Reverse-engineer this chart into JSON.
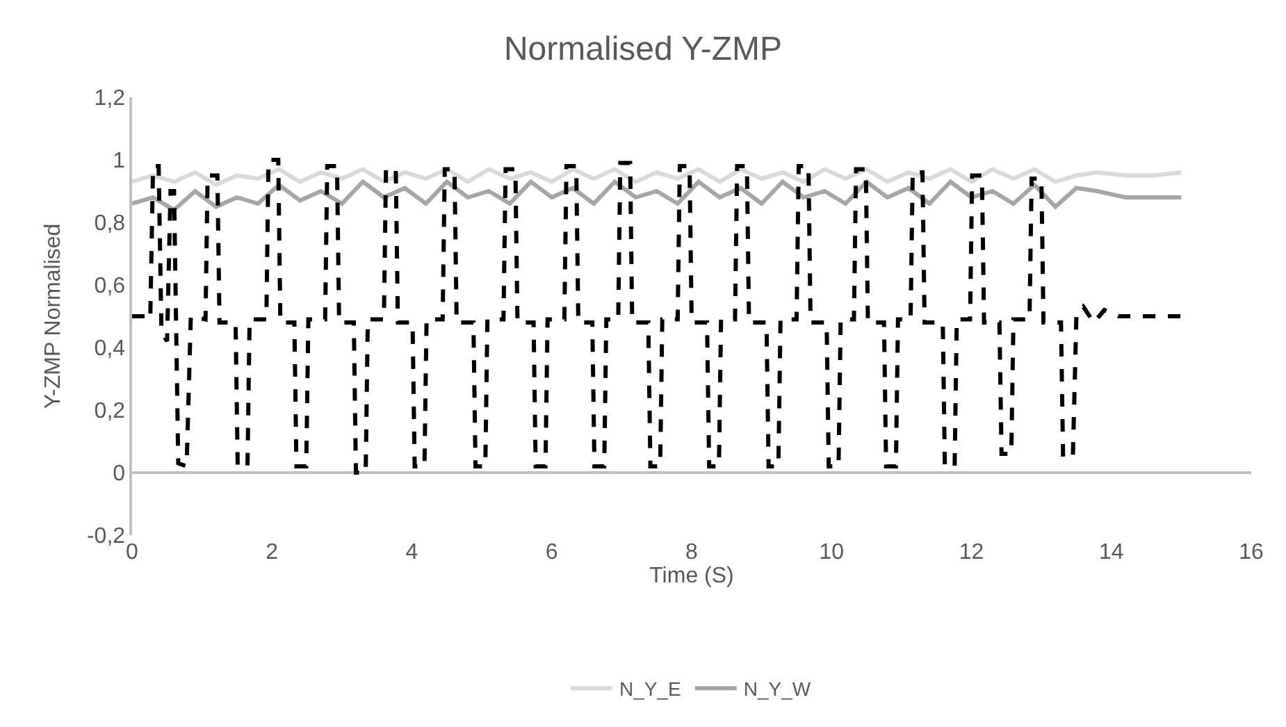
{
  "chart_data": {
    "type": "line",
    "title": "Normalised Y-ZMP",
    "xlabel": "Time (S)",
    "ylabel": "Y-ZMP Normalised",
    "xlim": [
      0,
      16
    ],
    "xticks": [
      0,
      2,
      4,
      6,
      8,
      10,
      12,
      14,
      16
    ],
    "ylim": [
      -0.2,
      1.2
    ],
    "yticks": [
      {
        "value": -0.2,
        "label": "-0,2"
      },
      0,
      {
        "value": 0.2,
        "label": "0,2"
      },
      {
        "value": 0.4,
        "label": "0,4"
      },
      {
        "value": 0.6,
        "label": "0,6"
      },
      {
        "value": 0.8,
        "label": "0,8"
      },
      1,
      {
        "value": 1.2,
        "label": "1,2"
      }
    ],
    "legend": "bottom",
    "marker": "none",
    "series": [
      {
        "name": "N_Y_E",
        "color": "#d9d9d9",
        "line_style": "solid",
        "x": [
          0,
          0.3,
          0.6,
          0.9,
          1.2,
          1.5,
          1.8,
          2.1,
          2.4,
          2.7,
          3.0,
          3.3,
          3.6,
          3.9,
          4.2,
          4.5,
          4.8,
          5.1,
          5.4,
          5.7,
          6.0,
          6.3,
          6.6,
          6.9,
          7.2,
          7.5,
          7.8,
          8.1,
          8.4,
          8.7,
          9.0,
          9.3,
          9.6,
          9.9,
          10.2,
          10.5,
          10.8,
          11.1,
          11.4,
          11.7,
          12.0,
          12.3,
          12.6,
          12.9,
          13.2,
          13.5,
          13.8,
          14.2,
          14.6,
          15.0
        ],
        "values": [
          0.93,
          0.95,
          0.93,
          0.96,
          0.92,
          0.95,
          0.94,
          0.97,
          0.93,
          0.96,
          0.94,
          0.97,
          0.93,
          0.96,
          0.94,
          0.97,
          0.93,
          0.97,
          0.94,
          0.96,
          0.93,
          0.97,
          0.94,
          0.97,
          0.93,
          0.96,
          0.94,
          0.97,
          0.93,
          0.97,
          0.94,
          0.96,
          0.93,
          0.97,
          0.94,
          0.97,
          0.93,
          0.96,
          0.94,
          0.97,
          0.93,
          0.97,
          0.94,
          0.97,
          0.93,
          0.95,
          0.96,
          0.95,
          0.95,
          0.96
        ]
      },
      {
        "name": "N_Y_W",
        "color": "#a6a6a6",
        "line_style": "solid",
        "x": [
          0,
          0.3,
          0.6,
          0.9,
          1.2,
          1.5,
          1.8,
          2.1,
          2.4,
          2.7,
          3.0,
          3.3,
          3.6,
          3.9,
          4.2,
          4.5,
          4.8,
          5.1,
          5.4,
          5.7,
          6.0,
          6.3,
          6.6,
          6.9,
          7.2,
          7.5,
          7.8,
          8.1,
          8.4,
          8.7,
          9.0,
          9.3,
          9.6,
          9.9,
          10.2,
          10.5,
          10.8,
          11.1,
          11.4,
          11.7,
          12.0,
          12.3,
          12.6,
          12.9,
          13.2,
          13.5,
          13.8,
          14.2,
          14.6,
          15.0
        ],
        "values": [
          0.86,
          0.88,
          0.84,
          0.9,
          0.85,
          0.88,
          0.86,
          0.92,
          0.87,
          0.9,
          0.86,
          0.93,
          0.88,
          0.91,
          0.86,
          0.93,
          0.88,
          0.9,
          0.86,
          0.93,
          0.88,
          0.91,
          0.86,
          0.93,
          0.88,
          0.9,
          0.86,
          0.93,
          0.88,
          0.91,
          0.86,
          0.93,
          0.88,
          0.9,
          0.86,
          0.93,
          0.88,
          0.91,
          0.86,
          0.93,
          0.88,
          0.9,
          0.86,
          0.92,
          0.85,
          0.91,
          0.9,
          0.88,
          0.88,
          0.88
        ]
      },
      {
        "color": "#000000",
        "line_style": "dashed",
        "x": [
          0,
          0.2,
          0.26,
          0.3,
          0.38,
          0.42,
          0.5,
          0.55,
          0.6,
          0.66,
          0.78,
          0.84,
          1.05,
          1.08,
          1.22,
          1.25,
          1.48,
          1.51,
          1.65,
          1.68,
          1.92,
          1.95,
          2.09,
          2.12,
          2.32,
          2.35,
          2.49,
          2.52,
          2.76,
          2.79,
          2.93,
          2.96,
          3.17,
          3.2,
          3.34,
          3.37,
          3.6,
          3.63,
          3.77,
          3.8,
          4.01,
          4.04,
          4.18,
          4.21,
          4.44,
          4.47,
          4.61,
          4.64,
          4.88,
          4.91,
          5.05,
          5.08,
          5.31,
          5.34,
          5.48,
          5.51,
          5.74,
          5.77,
          5.91,
          5.94,
          6.18,
          6.21,
          6.35,
          6.38,
          6.58,
          6.61,
          6.75,
          6.78,
          6.95,
          6.98,
          7.12,
          7.15,
          7.38,
          7.41,
          7.55,
          7.58,
          7.8,
          7.83,
          7.97,
          8.0,
          8.22,
          8.25,
          8.39,
          8.42,
          8.62,
          8.65,
          8.79,
          8.82,
          9.07,
          9.1,
          9.24,
          9.27,
          9.5,
          9.53,
          9.67,
          9.7,
          9.93,
          9.96,
          10.1,
          10.13,
          10.32,
          10.35,
          10.49,
          10.52,
          10.75,
          10.78,
          10.92,
          10.95,
          11.13,
          11.16,
          11.3,
          11.33,
          11.59,
          11.62,
          11.76,
          11.79,
          11.98,
          12.01,
          12.15,
          12.18,
          12.4,
          12.43,
          12.57,
          12.6,
          12.83,
          12.86,
          13.0,
          13.03,
          13.28,
          13.31,
          13.45,
          13.5,
          13.6,
          13.75,
          13.9,
          14.1,
          15.0
        ],
        "values": [
          0.5,
          0.5,
          0.49,
          0.98,
          0.98,
          0.45,
          0.42,
          0.9,
          0.9,
          0.03,
          0.02,
          0.5,
          0.49,
          0.95,
          0.95,
          0.48,
          0.48,
          0.02,
          0.02,
          0.49,
          0.49,
          1.0,
          1.0,
          0.48,
          0.48,
          0.02,
          0.02,
          0.49,
          0.49,
          0.98,
          0.98,
          0.48,
          0.48,
          0.0,
          0.0,
          0.49,
          0.49,
          0.97,
          0.97,
          0.48,
          0.48,
          0.02,
          0.02,
          0.49,
          0.49,
          0.97,
          0.97,
          0.48,
          0.48,
          0.02,
          0.02,
          0.49,
          0.49,
          0.97,
          0.97,
          0.48,
          0.48,
          0.02,
          0.02,
          0.49,
          0.49,
          0.98,
          0.98,
          0.48,
          0.48,
          0.02,
          0.02,
          0.49,
          0.49,
          0.99,
          0.99,
          0.48,
          0.48,
          0.02,
          0.02,
          0.49,
          0.49,
          0.98,
          0.98,
          0.48,
          0.48,
          0.02,
          0.02,
          0.49,
          0.49,
          0.98,
          0.98,
          0.48,
          0.48,
          0.02,
          0.02,
          0.49,
          0.49,
          0.98,
          0.98,
          0.48,
          0.48,
          0.02,
          0.02,
          0.49,
          0.49,
          0.97,
          0.97,
          0.48,
          0.48,
          0.02,
          0.02,
          0.49,
          0.49,
          0.96,
          0.96,
          0.48,
          0.48,
          0.02,
          0.02,
          0.49,
          0.49,
          0.95,
          0.95,
          0.48,
          0.48,
          0.06,
          0.06,
          0.49,
          0.49,
          0.94,
          0.94,
          0.48,
          0.48,
          0.05,
          0.05,
          0.5,
          0.53,
          0.48,
          0.52,
          0.5,
          0.5
        ]
      }
    ]
  }
}
